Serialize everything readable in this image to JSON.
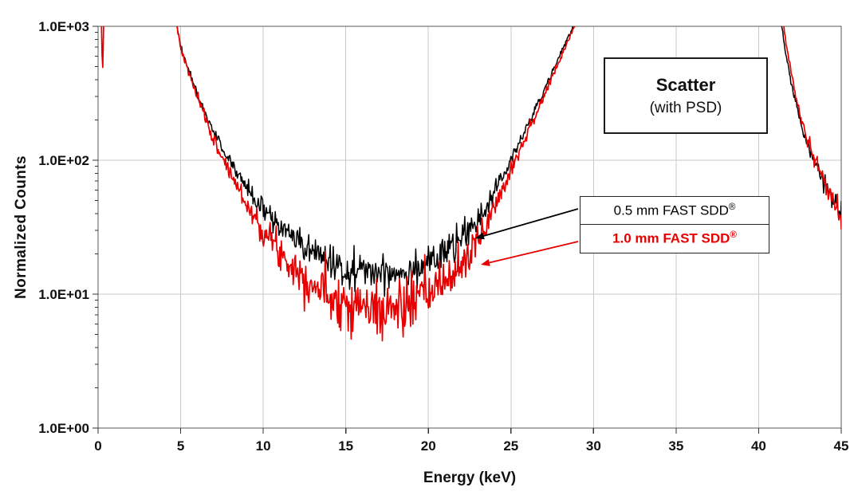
{
  "chart_data": {
    "type": "line",
    "title": "",
    "xlabel": "Energy (keV)",
    "ylabel": "Normalized Counts",
    "x_axis": {
      "min": 0,
      "max": 45,
      "tick_step": 5,
      "tick_labels": [
        "0",
        "5",
        "10",
        "15",
        "20",
        "25",
        "30",
        "35",
        "40",
        "45"
      ]
    },
    "y_axis": {
      "scale": "log",
      "min": 1,
      "max": 1000,
      "tick_labels": [
        "1.0E+00",
        "1.0E+01",
        "1.0E+02",
        "1.0E+03"
      ]
    },
    "grid": {
      "show": true,
      "color": "#c9c9c9",
      "border_color": "#595959"
    },
    "legend_position": "annotation-boxes-right",
    "sample_step": 0.045,
    "series": [
      {
        "name": "0.5 mm FAST SDD",
        "mark": "®",
        "color": "#000000",
        "seed": 42,
        "noise_k": 0.27,
        "noise_cap": 0.13,
        "line_width": 1.5,
        "segments": [
          [
            [
              4.25,
              2600
            ],
            [
              4.6,
              1300
            ],
            [
              5.0,
              700
            ],
            [
              5.5,
              470
            ],
            [
              6.0,
              310
            ],
            [
              6.5,
              225
            ],
            [
              7.0,
              160
            ],
            [
              7.5,
              125
            ],
            [
              8.0,
              98
            ],
            [
              8.5,
              78
            ],
            [
              9.0,
              62
            ],
            [
              9.5,
              51
            ],
            [
              10,
              43
            ],
            [
              10.5,
              37
            ],
            [
              11,
              32
            ],
            [
              11.5,
              28
            ],
            [
              12,
              25
            ],
            [
              12.5,
              22.5
            ],
            [
              13,
              20.5
            ],
            [
              13.5,
              19
            ],
            [
              14,
              17.5
            ],
            [
              14.5,
              16.5
            ],
            [
              15,
              15.8
            ],
            [
              15.5,
              15.2
            ],
            [
              16,
              15.0
            ],
            [
              16.5,
              14.7
            ],
            [
              17,
              14.6
            ],
            [
              17.5,
              14.6
            ],
            [
              18,
              14.8
            ],
            [
              18.5,
              15.1
            ],
            [
              19,
              15.6
            ],
            [
              19.5,
              16.4
            ],
            [
              20,
              17.4
            ],
            [
              20.5,
              18.8
            ],
            [
              21,
              20.5
            ],
            [
              21.5,
              22.5
            ],
            [
              22,
              25.5
            ],
            [
              22.5,
              29
            ],
            [
              23,
              36
            ],
            [
              23.5,
              45
            ],
            [
              24,
              58
            ],
            [
              24.5,
              76
            ],
            [
              25,
              100
            ],
            [
              25.5,
              135
            ],
            [
              26,
              180
            ],
            [
              26.5,
              245
            ],
            [
              27,
              330
            ],
            [
              27.5,
              450
            ],
            [
              28,
              620
            ],
            [
              28.5,
              850
            ],
            [
              29,
              1150
            ],
            [
              29.4,
              1800
            ]
          ],
          [
            [
              41.1,
              1900
            ],
            [
              41.5,
              800
            ],
            [
              41.9,
              420
            ],
            [
              42.3,
              250
            ],
            [
              42.7,
              165
            ],
            [
              43.1,
              120
            ],
            [
              43.5,
              92
            ],
            [
              43.9,
              72
            ],
            [
              44.3,
              57
            ],
            [
              44.7,
              46
            ],
            [
              45,
              40
            ]
          ]
        ]
      },
      {
        "name": "1.0 mm FAST SDD",
        "mark": "®",
        "color": "#e80000",
        "seed": 7,
        "noise_k": 0.3,
        "noise_cap": 0.13,
        "line_width": 1.7,
        "segments": [
          [
            [
              0.15,
              2400
            ],
            [
              0.27,
              400
            ],
            [
              0.4,
              2400
            ]
          ],
          [
            [
              4.3,
              2400
            ],
            [
              4.65,
              1200
            ],
            [
              5.05,
              650
            ],
            [
              5.55,
              430
            ],
            [
              6.05,
              285
            ],
            [
              6.55,
              200
            ],
            [
              7.0,
              140
            ],
            [
              7.5,
              107
            ],
            [
              8.0,
              80
            ],
            [
              8.5,
              62
            ],
            [
              9.0,
              47
            ],
            [
              9.5,
              37
            ],
            [
              10,
              30
            ],
            [
              10.5,
              25
            ],
            [
              11,
              21
            ],
            [
              11.5,
              18
            ],
            [
              12,
              15.5
            ],
            [
              12.5,
              13.5
            ],
            [
              13,
              12
            ],
            [
              13.5,
              10.8
            ],
            [
              14,
              10
            ],
            [
              14.5,
              9.3
            ],
            [
              15,
              8.8
            ],
            [
              15.5,
              8.4
            ],
            [
              16,
              8.1
            ],
            [
              16.5,
              7.8
            ],
            [
              17,
              7.6
            ],
            [
              17.5,
              7.6
            ],
            [
              18,
              7.8
            ],
            [
              18.5,
              8.1
            ],
            [
              19,
              8.6
            ],
            [
              19.5,
              9.2
            ],
            [
              20,
              10
            ],
            [
              20.5,
              11
            ],
            [
              21,
              12.4
            ],
            [
              21.5,
              14.2
            ],
            [
              22,
              16.5
            ],
            [
              22.5,
              19.5
            ],
            [
              23,
              25
            ],
            [
              23.5,
              33
            ],
            [
              24,
              45
            ],
            [
              24.5,
              62
            ],
            [
              25,
              86
            ],
            [
              25.5,
              118
            ],
            [
              26,
              160
            ],
            [
              26.5,
              220
            ],
            [
              27,
              300
            ],
            [
              27.5,
              415
            ],
            [
              28,
              575
            ],
            [
              28.5,
              800
            ],
            [
              29,
              1100
            ],
            [
              29.5,
              1900
            ]
          ],
          [
            [
              41.25,
              1900
            ],
            [
              41.65,
              750
            ],
            [
              42.05,
              395
            ],
            [
              42.45,
              235
            ],
            [
              42.85,
              155
            ],
            [
              43.25,
              112
            ],
            [
              43.65,
              85
            ],
            [
              44.05,
              66
            ],
            [
              44.45,
              52
            ],
            [
              44.85,
              41
            ],
            [
              45,
              34
            ]
          ]
        ]
      }
    ],
    "annotations": {
      "scatter_box": {
        "line1": "Scatter",
        "line2": "(with PSD)"
      },
      "arrows": [
        {
          "color": "#000000",
          "from": [
            725,
            262
          ],
          "to": [
            596,
            299
          ]
        },
        {
          "color": "#e80000",
          "from": [
            725,
            303
          ],
          "to": [
            603,
            332
          ]
        }
      ]
    }
  }
}
